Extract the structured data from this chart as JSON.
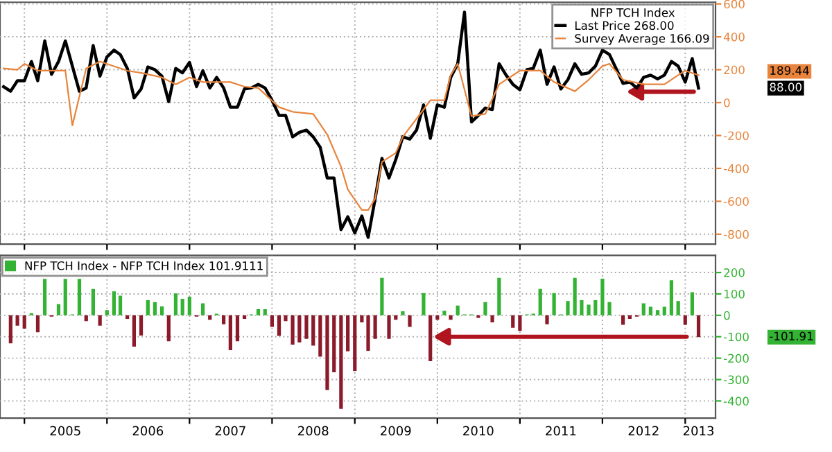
{
  "chart_data": [
    {
      "type": "line",
      "legend_title": "NFP TCH Index",
      "legend": "top right",
      "grid": true,
      "tick_labels": "y",
      "xlim": [
        "2004-09-15",
        "2013-05-15"
      ],
      "ylim": [
        -860,
        610
      ],
      "yticks": [
        -800,
        -600,
        -400,
        -200,
        0,
        200,
        400,
        600
      ],
      "xticks": [
        {
          "value": "2005-01",
          "label": null
        },
        {
          "value": "2006-01",
          "label": null
        },
        {
          "value": "2007-01",
          "label": null
        },
        {
          "value": "2008-01",
          "label": null
        },
        {
          "value": "2009-01",
          "label": null
        },
        {
          "value": "2010-01",
          "label": null
        },
        {
          "value": "2011-01",
          "label": null
        },
        {
          "value": "2012-01",
          "label": null
        },
        {
          "value": "2013-01",
          "label": null
        }
      ],
      "annotations": [
        "189.44",
        "88.00"
      ],
      "series": [
        {
          "name": "Last Price 268.00",
          "color": "#000000",
          "x": [
            "2004-10",
            "2004-11",
            "2004-12",
            "2005-01",
            "2005-02",
            "2005-03",
            "2005-04",
            "2005-05",
            "2005-06",
            "2005-07",
            "2005-08",
            "2005-09",
            "2005-10",
            "2005-11",
            "2005-12",
            "2006-01",
            "2006-02",
            "2006-03",
            "2006-04",
            "2006-05",
            "2006-06",
            "2006-07",
            "2006-08",
            "2006-09",
            "2006-10",
            "2006-11",
            "2006-12",
            "2007-01",
            "2007-02",
            "2007-03",
            "2007-04",
            "2007-05",
            "2007-06",
            "2007-07",
            "2007-08",
            "2007-09",
            "2007-10",
            "2007-11",
            "2007-12",
            "2008-01",
            "2008-02",
            "2008-03",
            "2008-04",
            "2008-05",
            "2008-06",
            "2008-07",
            "2008-08",
            "2008-09",
            "2008-10",
            "2008-11",
            "2008-12",
            "2009-01",
            "2009-02",
            "2009-03",
            "2009-04",
            "2009-05",
            "2009-06",
            "2009-07",
            "2009-08",
            "2009-09",
            "2009-10",
            "2009-11",
            "2009-12",
            "2010-01",
            "2010-02",
            "2010-03",
            "2010-04",
            "2010-05",
            "2010-06",
            "2010-07",
            "2010-08",
            "2010-09",
            "2010-10",
            "2010-11",
            "2010-12",
            "2011-01",
            "2011-02",
            "2011-03",
            "2011-04",
            "2011-05",
            "2011-06",
            "2011-07",
            "2011-08",
            "2011-09",
            "2011-10",
            "2011-11",
            "2011-12",
            "2012-01",
            "2012-02",
            "2012-03",
            "2012-04",
            "2012-05",
            "2012-06",
            "2012-07",
            "2012-08",
            "2012-09",
            "2012-10",
            "2012-11",
            "2012-12",
            "2013-01",
            "2013-02",
            "2013-03"
          ],
          "values": [
            97,
            69,
            133,
            133,
            250,
            133,
            375,
            172,
            250,
            375,
            222,
            69,
            89,
            347,
            161,
            278,
            319,
            292,
            208,
            28,
            83,
            217,
            200,
            161,
            6,
            208,
            181,
            244,
            97,
            194,
            89,
            153,
            89,
            -28,
            -28,
            83,
            89,
            111,
            89,
            14,
            -78,
            -78,
            -208,
            -181,
            -167,
            -208,
            -272,
            -458,
            -458,
            -772,
            -694,
            -792,
            -689,
            -819,
            -583,
            -339,
            -458,
            -347,
            -208,
            -222,
            -167,
            -14,
            -217,
            -14,
            -28,
            153,
            236,
            550,
            -117,
            -78,
            -33,
            -42,
            236,
            167,
            111,
            78,
            200,
            208,
            319,
            111,
            217,
            83,
            139,
            236,
            172,
            181,
            222,
            319,
            292,
            208,
            117,
            125,
            89,
            153,
            167,
            144,
            167,
            250,
            222,
            125,
            268,
            88
          ]
        },
        {
          "name": "Survey Average 166.09",
          "color": "#e8843c",
          "x": [
            "2004-10",
            "2004-12",
            "2005-01",
            "2005-03",
            "2005-07",
            "2005-08",
            "2005-10",
            "2005-12",
            "2006-04",
            "2006-06",
            "2006-09",
            "2006-11",
            "2007-01",
            "2007-03",
            "2007-07",
            "2007-09",
            "2007-11",
            "2008-02",
            "2008-04",
            "2008-07",
            "2008-09",
            "2008-11",
            "2008-12",
            "2009-02",
            "2009-03",
            "2009-04",
            "2009-05",
            "2009-07",
            "2009-08",
            "2009-11",
            "2009-12",
            "2010-02",
            "2010-03",
            "2010-04",
            "2010-06",
            "2010-08",
            "2010-10",
            "2011-01",
            "2011-04",
            "2011-06",
            "2011-09",
            "2011-11",
            "2012-01",
            "2012-02",
            "2012-04",
            "2012-07",
            "2012-10",
            "2012-12",
            "2013-01",
            "2013-03"
          ],
          "values": [
            208,
            200,
            236,
            194,
            194,
            -139,
            208,
            250,
            194,
            181,
            153,
            111,
            153,
            125,
            125,
            97,
            89,
            -28,
            -56,
            -69,
            -194,
            -389,
            -528,
            -653,
            -653,
            -583,
            -361,
            -306,
            -208,
            -42,
            14,
            14,
            167,
            236,
            -83,
            -69,
            111,
            194,
            194,
            125,
            69,
            139,
            222,
            236,
            139,
            111,
            111,
            167,
            194,
            167
          ]
        }
      ]
    },
    {
      "type": "bar",
      "legend": "top left",
      "grid": true,
      "xlim": [
        "2004-09-15",
        "2013-05-15"
      ],
      "ylim": [
        -480,
        280
      ],
      "yticks": [
        -400,
        -300,
        -200,
        -100,
        0,
        100,
        200
      ],
      "xticks": [
        {
          "value": "2005-01",
          "label": null
        },
        {
          "value": "2005-07",
          "label": "2005"
        },
        {
          "value": "2006-01",
          "label": null
        },
        {
          "value": "2006-07",
          "label": "2006"
        },
        {
          "value": "2007-01",
          "label": null
        },
        {
          "value": "2007-07",
          "label": "2007"
        },
        {
          "value": "2008-01",
          "label": null
        },
        {
          "value": "2008-07",
          "label": "2008"
        },
        {
          "value": "2009-01",
          "label": null
        },
        {
          "value": "2009-07",
          "label": "2009"
        },
        {
          "value": "2010-01",
          "label": null
        },
        {
          "value": "2010-07",
          "label": "2010"
        },
        {
          "value": "2011-01",
          "label": null
        },
        {
          "value": "2011-07",
          "label": "2011"
        },
        {
          "value": "2012-01",
          "label": null
        },
        {
          "value": "2012-07",
          "label": "2012"
        },
        {
          "value": "2013-01",
          "label": null
        },
        {
          "value": "2013-03",
          "label": "2013"
        }
      ],
      "annotations": [
        "-101.91"
      ],
      "series": [
        {
          "name": "NFP TCH Index - NFP TCH Index 101.9111",
          "color": "#33b233",
          "x": [
            "2004-11",
            "2004-12",
            "2005-01",
            "2005-02",
            "2005-03",
            "2005-04",
            "2005-05",
            "2005-06",
            "2005-07",
            "2005-08",
            "2005-09",
            "2005-10",
            "2005-11",
            "2005-12",
            "2006-01",
            "2006-02",
            "2006-03",
            "2006-04",
            "2006-05",
            "2006-06",
            "2006-07",
            "2006-08",
            "2006-09",
            "2006-10",
            "2006-11",
            "2006-12",
            "2007-01",
            "2007-02",
            "2007-03",
            "2007-04",
            "2007-05",
            "2007-06",
            "2007-07",
            "2007-08",
            "2007-09",
            "2007-10",
            "2007-11",
            "2007-12",
            "2008-01",
            "2008-02",
            "2008-03",
            "2008-04",
            "2008-05",
            "2008-06",
            "2008-07",
            "2008-08",
            "2008-09",
            "2008-10",
            "2008-11",
            "2008-12",
            "2009-01",
            "2009-02",
            "2009-03",
            "2009-04",
            "2009-05",
            "2009-06",
            "2009-07",
            "2009-08",
            "2009-09",
            "2009-10",
            "2009-11",
            "2009-12",
            "2010-01",
            "2010-02",
            "2010-03",
            "2010-04",
            "2010-05",
            "2010-06",
            "2010-07",
            "2010-08",
            "2010-09",
            "2010-10",
            "2010-11",
            "2010-12",
            "2011-01",
            "2011-02",
            "2011-03",
            "2011-04",
            "2011-05",
            "2011-06",
            "2011-07",
            "2011-08",
            "2011-09",
            "2011-10",
            "2011-11",
            "2011-12",
            "2012-01",
            "2012-02",
            "2012-03",
            "2012-04",
            "2012-05",
            "2012-06",
            "2012-07",
            "2012-08",
            "2012-09",
            "2012-10",
            "2012-11",
            "2012-12",
            "2013-01",
            "2013-02",
            "2013-03"
          ],
          "values": [
            -131,
            -48,
            -62,
            10,
            -79,
            170,
            -6,
            52,
            170,
            4,
            170,
            -27,
            123,
            -48,
            25,
            112,
            92,
            -17,
            -146,
            -94,
            71,
            62,
            42,
            -121,
            102,
            77,
            87,
            -6,
            56,
            -21,
            8,
            -42,
            -162,
            -121,
            -17,
            4,
            29,
            29,
            -54,
            -96,
            -27,
            -137,
            -127,
            -110,
            -141,
            -193,
            -349,
            -266,
            -437,
            -168,
            -260,
            -33,
            -166,
            -110,
            175,
            -110,
            -21,
            19,
            -54,
            null,
            104,
            -214,
            -21,
            21,
            -21,
            46,
            4,
            4,
            -12,
            62,
            -33,
            175,
            null,
            -58,
            -73,
            4,
            8,
            123,
            -42,
            104,
            4,
            67,
            175,
            71,
            50,
            71,
            171,
            62,
            null,
            -44,
            -17,
            -6,
            56,
            40,
            25,
            40,
            164,
            67,
            -44,
            108,
            -102
          ],
          "colors": [
            "#8b1a2b",
            "#8b1a2b",
            "#8b1a2b",
            "#33b233",
            "#8b1a2b",
            "#33b233",
            "#8b1a2b",
            "#33b233",
            "#33b233",
            "#33b233",
            "#33b233",
            "#8b1a2b",
            "#33b233",
            "#8b1a2b",
            "#33b233",
            "#33b233",
            "#33b233",
            "#8b1a2b",
            "#8b1a2b",
            "#8b1a2b",
            "#33b233",
            "#33b233",
            "#33b233",
            "#8b1a2b",
            "#33b233",
            "#33b233",
            "#33b233",
            "#8b1a2b",
            "#33b233",
            "#8b1a2b",
            "#33b233",
            "#8b1a2b",
            "#8b1a2b",
            "#8b1a2b",
            "#8b1a2b",
            "#33b233",
            "#33b233",
            "#33b233",
            "#8b1a2b",
            "#8b1a2b",
            "#8b1a2b",
            "#8b1a2b",
            "#8b1a2b",
            "#8b1a2b",
            "#8b1a2b",
            "#8b1a2b",
            "#8b1a2b",
            "#8b1a2b",
            "#8b1a2b",
            "#8b1a2b",
            "#8b1a2b",
            "#8b1a2b",
            "#8b1a2b",
            "#8b1a2b",
            "#33b233",
            "#8b1a2b",
            "#8b1a2b",
            "#33b233",
            "#8b1a2b",
            null,
            "#33b233",
            "#8b1a2b",
            "#8b1a2b",
            "#33b233",
            "#8b1a2b",
            "#33b233",
            "#33b233",
            "#33b233",
            "#8b1a2b",
            "#33b233",
            "#8b1a2b",
            "#33b233",
            null,
            "#8b1a2b",
            "#8b1a2b",
            "#33b233",
            "#33b233",
            "#33b233",
            "#8b1a2b",
            "#33b233",
            "#33b233",
            "#33b233",
            "#33b233",
            "#33b233",
            "#33b233",
            "#33b233",
            "#33b233",
            "#33b233",
            null,
            "#8b1a2b",
            "#8b1a2b",
            "#8b1a2b",
            "#33b233",
            "#33b233",
            "#33b233",
            "#33b233",
            "#33b233",
            "#33b233",
            "#8b1a2b",
            "#33b233",
            "#8b1a2b"
          ]
        }
      ]
    }
  ]
}
